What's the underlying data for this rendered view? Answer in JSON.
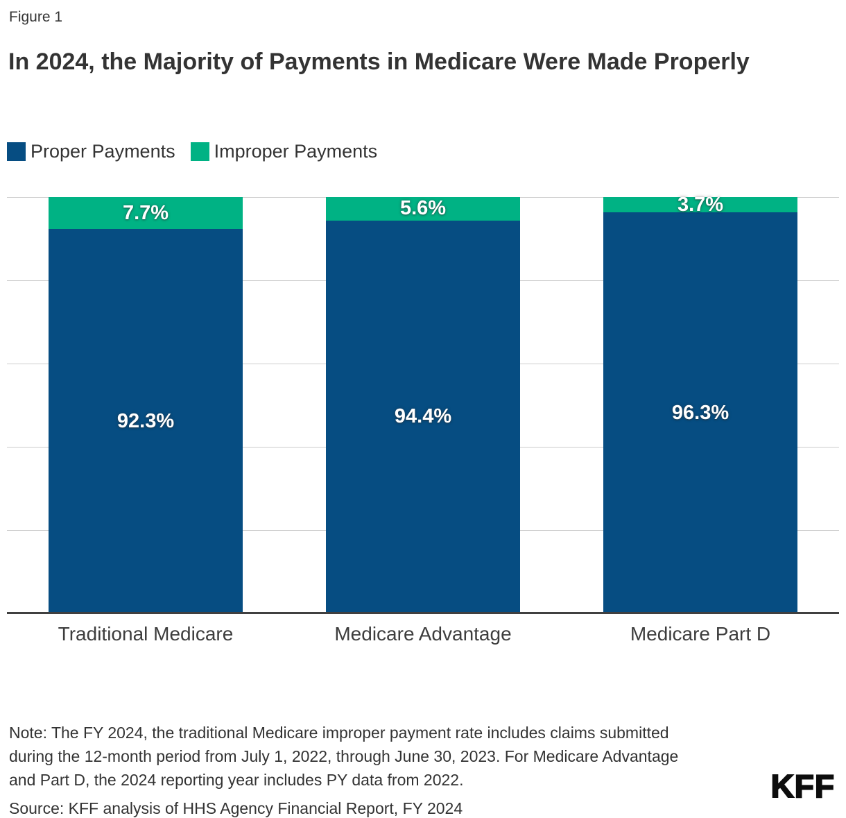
{
  "figure_label": "Figure 1",
  "chart_data": {
    "type": "bar",
    "stacked": true,
    "unit": "%",
    "title": "In 2024, the Majority of Payments in Medicare Were Made Properly",
    "categories": [
      "Traditional Medicare",
      "Medicare Advantage",
      "Medicare Part D"
    ],
    "series": [
      {
        "name": "Proper Payments",
        "color": "#064d82",
        "values": [
          92.3,
          94.4,
          96.3
        ]
      },
      {
        "name": "Improper Payments",
        "color": "#00b284",
        "values": [
          7.7,
          5.6,
          3.7
        ]
      }
    ],
    "data_labels": {
      "proper": [
        "92.3%",
        "94.4%",
        "96.3%"
      ],
      "improper": [
        "7.7%",
        "5.6%",
        "3.7%"
      ]
    },
    "ylim": [
      0,
      100
    ],
    "gridline_step": 20,
    "grid": true,
    "y_axis_tick_labels_visible": false,
    "legend_position": "top"
  },
  "colors": {
    "proper": "#064d82",
    "improper": "#00b284",
    "gridline": "#cccccc",
    "axis": "#404040",
    "text": "#333333"
  },
  "note": "Note: The FY 2024, the traditional Medicare improper payment rate includes claims submitted during the 12-month period from July 1, 2022, through June 30, 2023. For Medicare Advantage and Part D, the 2024 reporting year includes PY data from 2022.",
  "source": "Source: KFF analysis of HHS Agency Financial Report, FY 2024",
  "logo": "KFF"
}
